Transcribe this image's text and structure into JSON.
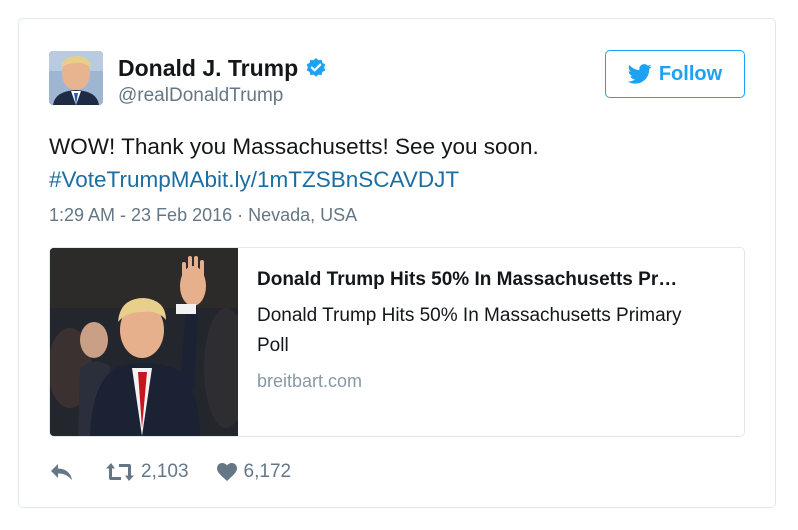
{
  "user": {
    "name": "Donald J. Trump",
    "handle": "@realDonaldTrump",
    "verified": true
  },
  "follow_button": {
    "label": "Follow"
  },
  "tweet": {
    "text": "WOW! Thank you Massachusetts! See you soon.",
    "hashtag": "#VoteTrumpMA",
    "link": "bit.ly/1mTZSBnSCAVDJT",
    "meta": "1:29 AM - 23 Feb 2016 · Nevada, USA"
  },
  "card": {
    "title": "Donald Trump Hits 50% In Massachusetts Pr…",
    "description": "Donald Trump Hits 50% In Massachusetts Primary Poll",
    "domain": "breitbart.com"
  },
  "actions": {
    "retweets": "2,103",
    "likes": "6,172"
  },
  "icons": {
    "verified": "verified-badge-icon",
    "follow": "twitter-bird-icon",
    "reply": "reply-icon",
    "retweet": "retweet-icon",
    "like": "heart-icon"
  },
  "colors": {
    "accent": "#1da1f2",
    "link": "#1b6ea3",
    "muted": "#657786",
    "border": "#e1e8ed"
  }
}
